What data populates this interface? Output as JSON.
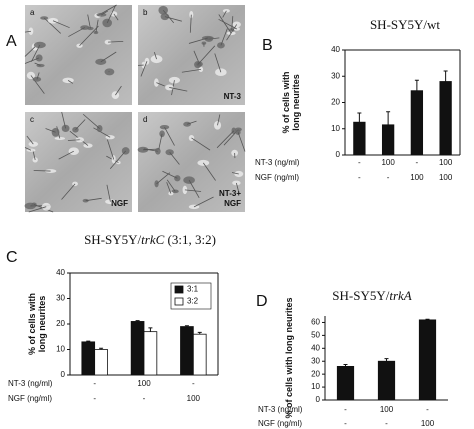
{
  "panel_labels": [
    "A",
    "B",
    "C",
    "D"
  ],
  "micrographs": [
    {
      "letter": "a"
    },
    {
      "letter": "b",
      "label": [
        "NT-3"
      ]
    },
    {
      "letter": "c",
      "label": [
        "NGF"
      ]
    },
    {
      "letter": "d",
      "label": [
        "NT-3+",
        "NGF"
      ]
    }
  ],
  "chart_data": [
    {
      "type": "bar",
      "title_parts": [
        "SH-SY5Y/wt"
      ],
      "y_label": [
        "% of cells with",
        "long neurites"
      ],
      "treatments": [
        {
          "name": "NT-3 (ng/ml)",
          "levels": [
            "-",
            "100",
            "-",
            "100"
          ]
        },
        {
          "name": "NGF (ng/ml)",
          "levels": [
            "-",
            "-",
            "100",
            "100"
          ]
        }
      ],
      "series": [
        {
          "color": "#111111",
          "values": [
            12.5,
            11.5,
            24.5,
            28
          ],
          "errors": [
            3.5,
            5,
            4,
            4
          ]
        }
      ],
      "ylim": [
        0,
        40
      ],
      "yticks": [
        0,
        10,
        20,
        30,
        40
      ]
    },
    {
      "type": "bar",
      "title_parts": [
        "SH-SY5Y/",
        "trkC",
        " (3:1, 3:2)"
      ],
      "y_label": [
        "% of cells with",
        "long neurites"
      ],
      "treatments": [
        {
          "name": "NT-3 (ng/ml)",
          "levels": [
            "-",
            "100",
            "-"
          ]
        },
        {
          "name": "NGF (ng/ml)",
          "levels": [
            "-",
            "-",
            "100"
          ]
        }
      ],
      "series": [
        {
          "name": "3:1",
          "color": "#111111",
          "values": [
            13,
            21,
            19
          ],
          "errors": [
            0.3,
            0.3,
            0.3
          ]
        },
        {
          "name": "3:2",
          "color": "#ffffff",
          "values": [
            10,
            17,
            16
          ],
          "errors": [
            0.5,
            1.5,
            0.7
          ]
        }
      ],
      "ylim": [
        0,
        40
      ],
      "yticks": [
        0,
        10,
        20,
        30,
        40
      ]
    },
    {
      "type": "bar",
      "title_parts": [
        "SH-SY5Y/",
        "trkA"
      ],
      "y_label": [
        "% of cells with long neurites"
      ],
      "treatments": [
        {
          "name": "NT-3 (ng/ml)",
          "levels": [
            "-",
            "100",
            "-"
          ]
        },
        {
          "name": "NGF (ng/ml)",
          "levels": [
            "-",
            "-",
            "100"
          ]
        }
      ],
      "series": [
        {
          "color": "#111111",
          "values": [
            26,
            30,
            62
          ],
          "errors": [
            1.5,
            2,
            0.5
          ]
        }
      ],
      "ylim": [
        0,
        65
      ],
      "yticks": [
        0,
        10,
        20,
        30,
        40,
        50,
        60
      ]
    }
  ]
}
